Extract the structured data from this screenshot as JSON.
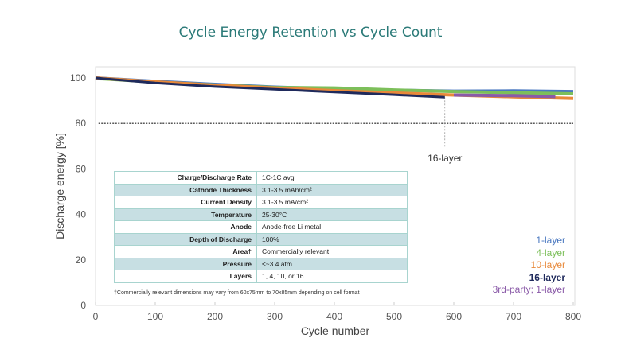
{
  "chart_data": {
    "type": "line",
    "title": "Cycle Energy Retention vs Cycle Count",
    "xlabel": "Cycle number",
    "ylabel": "Discharge energy [%]",
    "xlim": [
      0,
      800
    ],
    "ylim": [
      0,
      100
    ],
    "xticks": [
      "0",
      "100",
      "200",
      "300",
      "400",
      "500",
      "600",
      "700",
      "800"
    ],
    "yticks": [
      "0",
      "20",
      "40",
      "60",
      "80",
      "100"
    ],
    "grid": false,
    "legend_placement": "bottom-right",
    "reference_line": {
      "y": 80,
      "style": "dashed"
    },
    "annotation": {
      "text": "16-layer",
      "x": 585
    },
    "series": [
      {
        "name": "1-layer",
        "color": "#4a78c0",
        "x": [
          0,
          100,
          200,
          300,
          400,
          500,
          600,
          700,
          800
        ],
        "y": [
          100,
          98.5,
          97.2,
          96,
          95.2,
          94.6,
          94.2,
          94.3,
          94
        ]
      },
      {
        "name": "4-layer",
        "color": "#7cbf5a",
        "x": [
          0,
          100,
          200,
          300,
          400,
          500,
          600,
          700,
          800
        ],
        "y": [
          99.8,
          98.2,
          96.9,
          95.8,
          95.6,
          94.7,
          94,
          93.5,
          93
        ]
      },
      {
        "name": "10-layer",
        "color": "#e8893a",
        "x": [
          0,
          100,
          200,
          300,
          400,
          500,
          600,
          700,
          800
        ],
        "y": [
          100,
          98.3,
          96.8,
          95.6,
          94.4,
          93.4,
          92.5,
          91.7,
          91
        ]
      },
      {
        "name": "16-layer",
        "color": "#1f2a5c",
        "x": [
          0,
          100,
          200,
          300,
          400,
          500,
          585
        ],
        "y": [
          100,
          97.8,
          96.2,
          95,
          93.8,
          92.6,
          91.5
        ]
      },
      {
        "name": "3rd-party; 1-layer",
        "color": "#8a5aa8",
        "x": [
          600,
          700,
          770
        ],
        "y": [
          92.5,
          92.2,
          91.8
        ]
      }
    ]
  },
  "table": {
    "rows": [
      {
        "k": "Charge/Discharge Rate",
        "v": "1C-1C avg"
      },
      {
        "k": "Cathode Thickness",
        "v": "3.1-3.5 mAh/cm²"
      },
      {
        "k": "Current Density",
        "v": "3.1-3.5 mA/cm²"
      },
      {
        "k": "Temperature",
        "v": "25-30°C"
      },
      {
        "k": "Anode",
        "v": "Anode-free Li metal"
      },
      {
        "k": "Depth of Discharge",
        "v": "100%"
      },
      {
        "k": "Area†",
        "v": "Commercially relevant"
      },
      {
        "k": "Pressure",
        "v": "≤~3.4 atm"
      },
      {
        "k": "Layers",
        "v": "1, 4, 10, or 16"
      }
    ],
    "footnote": "†Commercially relevant dimensions may vary from 60x75mm to 70x85mm depending on cell format"
  }
}
